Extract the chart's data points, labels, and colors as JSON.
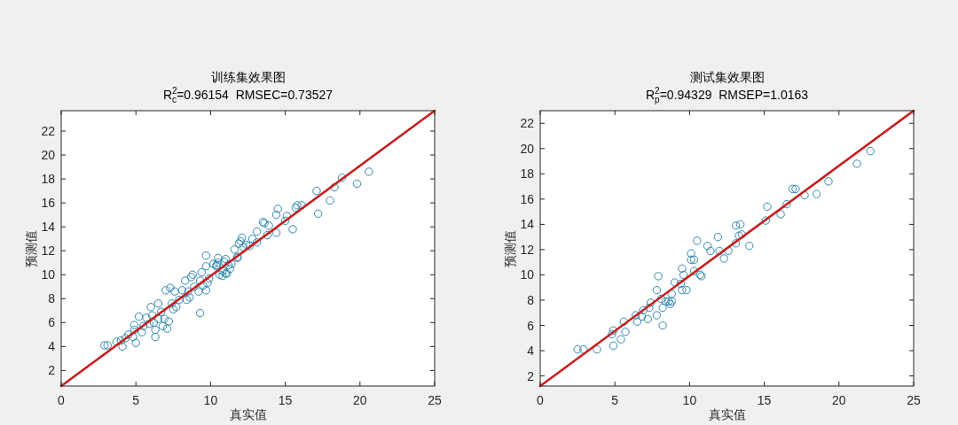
{
  "chart_data": [
    {
      "type": "scatter",
      "title": "训练集效果图",
      "subtitle": "R$^{2}$$_{c}$=0.96154  RMSEC=0.73527",
      "xlabel": "真实值",
      "ylabel": "预测值",
      "xlim": [
        0,
        25
      ],
      "ylim": [
        0.7,
        23.7
      ],
      "xticks": [
        0,
        5,
        10,
        15,
        20,
        25
      ],
      "yticks": [
        2,
        4,
        6,
        8,
        10,
        12,
        14,
        16,
        18,
        20,
        22
      ],
      "series": [
        {
          "type": "scatter",
          "color": "#1c7ca6",
          "marker": "circle",
          "x": [
            2.9,
            3.1,
            3.7,
            4.0,
            4.1,
            4.3,
            4.5,
            4.8,
            4.9,
            5.0,
            5.2,
            4.9,
            5.4,
            5.5,
            5.7,
            5.9,
            6.0,
            6.1,
            6.2,
            6.3,
            6.3,
            6.5,
            6.5,
            6.7,
            6.8,
            6.9,
            7.0,
            7.1,
            7.2,
            7.3,
            7.4,
            7.5,
            7.6,
            7.7,
            7.9,
            8.1,
            8.3,
            8.4,
            8.5,
            8.6,
            8.7,
            8.8,
            8.9,
            9.2,
            9.3,
            9.3,
            9.4,
            9.5,
            9.7,
            9.7,
            9.7,
            9.8,
            9.9,
            10.2,
            10.4,
            10.5,
            10.6,
            10.8,
            10.9,
            11.0,
            11.1,
            11.3,
            11.4,
            11.6,
            11.8,
            12.0,
            12.2,
            12.4,
            20.6,
            19.8,
            18.8,
            18.3,
            18.0,
            17.1,
            17.2,
            16.1,
            15.7,
            15.8,
            14.5,
            14.4,
            15.0,
            15.1,
            15.5,
            14.4,
            13.5,
            13.6,
            13.9,
            13.8,
            13.1,
            13.1,
            12.8,
            12.6,
            12.1,
            11.9,
            11.8,
            11.2,
            11.0,
            10.8,
            10.5,
            10.4
          ],
          "values": [
            4.1,
            4.1,
            4.4,
            4.5,
            4.0,
            4.7,
            5.0,
            4.8,
            5.4,
            4.3,
            6.5,
            5.8,
            5.2,
            5.7,
            6.4,
            5.9,
            7.3,
            6.6,
            6.0,
            5.4,
            4.8,
            6.3,
            7.6,
            6.9,
            5.7,
            6.3,
            8.7,
            5.5,
            6.1,
            8.9,
            7.6,
            7.1,
            8.6,
            7.3,
            7.9,
            8.7,
            9.5,
            7.9,
            8.6,
            8.1,
            9.8,
            10.0,
            9.0,
            8.6,
            6.8,
            9.5,
            10.2,
            9.1,
            11.6,
            10.7,
            8.7,
            9.3,
            9.7,
            10.9,
            10.8,
            11.4,
            10.0,
            10.3,
            11.1,
            10.1,
            10.1,
            10.5,
            10.9,
            12.1,
            11.4,
            12.8,
            12.3,
            12.5,
            18.6,
            17.6,
            18.1,
            17.3,
            16.2,
            17.0,
            15.1,
            15.8,
            15.6,
            15.8,
            15.5,
            15.0,
            14.5,
            14.9,
            13.8,
            13.5,
            14.4,
            14.3,
            14.1,
            13.3,
            13.6,
            12.7,
            13.0,
            12.4,
            13.1,
            12.6,
            11.5,
            10.8,
            11.3,
            9.9,
            11.0,
            10.7
          ]
        },
        {
          "type": "line",
          "color": "#c81e1e",
          "marker": "none",
          "line_style": "solid",
          "x": [
            0,
            25
          ],
          "values": [
            0.7,
            23.7
          ]
        }
      ]
    },
    {
      "type": "scatter",
      "title": "测试集效果图",
      "subtitle": "R$^{2}$$_{p}$=0.94329  RMSEP=1.0163",
      "xlabel": "真实值",
      "ylabel": "预测值",
      "xlim": [
        0,
        25
      ],
      "ylim": [
        1.2,
        23.0
      ],
      "xticks": [
        0,
        5,
        10,
        15,
        20,
        25
      ],
      "yticks": [
        2,
        4,
        6,
        8,
        10,
        12,
        14,
        16,
        18,
        20,
        22
      ],
      "series": [
        {
          "type": "scatter",
          "color": "#1c7ca6",
          "marker": "circle",
          "x": [
            2.5,
            2.9,
            3.8,
            4.8,
            4.9,
            4.9,
            5.4,
            5.6,
            5.7,
            6.4,
            6.5,
            6.8,
            6.9,
            7.2,
            7.3,
            7.4,
            7.8,
            7.8,
            7.9,
            8.1,
            8.2,
            8.2,
            8.4,
            8.6,
            8.7,
            8.8,
            8.8,
            9.0,
            9.4,
            9.5,
            9.5,
            9.6,
            9.8,
            10.1,
            10.1,
            10.3,
            10.3,
            10.5,
            10.7,
            10.8,
            11.2,
            11.4,
            11.9,
            12.0,
            12.3,
            12.6,
            13.1,
            13.1,
            13.3,
            13.4,
            13.5,
            14.0,
            15.1,
            15.2,
            16.1,
            16.5,
            16.9,
            17.1,
            17.7,
            18.5,
            19.3,
            21.2,
            22.1
          ],
          "values": [
            4.1,
            4.1,
            4.1,
            5.3,
            5.6,
            4.4,
            4.9,
            6.3,
            5.5,
            6.8,
            6.3,
            6.7,
            7.2,
            6.5,
            7.4,
            7.8,
            6.8,
            8.8,
            9.9,
            8.1,
            6.0,
            7.4,
            7.9,
            7.9,
            7.7,
            7.9,
            8.5,
            9.4,
            9.3,
            10.5,
            8.8,
            10.0,
            8.8,
            11.2,
            11.7,
            11.2,
            10.3,
            12.7,
            10.0,
            9.9,
            12.3,
            11.9,
            13.0,
            11.9,
            11.3,
            11.9,
            12.5,
            13.9,
            13.1,
            14.0,
            13.2,
            12.3,
            14.3,
            15.4,
            14.8,
            15.6,
            16.8,
            16.8,
            16.3,
            16.4,
            17.4,
            18.8,
            19.8
          ]
        },
        {
          "type": "line",
          "color": "#c81e1e",
          "marker": "none",
          "line_style": "solid",
          "x": [
            0,
            25
          ],
          "values": [
            1.2,
            23.0
          ]
        }
      ]
    }
  ]
}
